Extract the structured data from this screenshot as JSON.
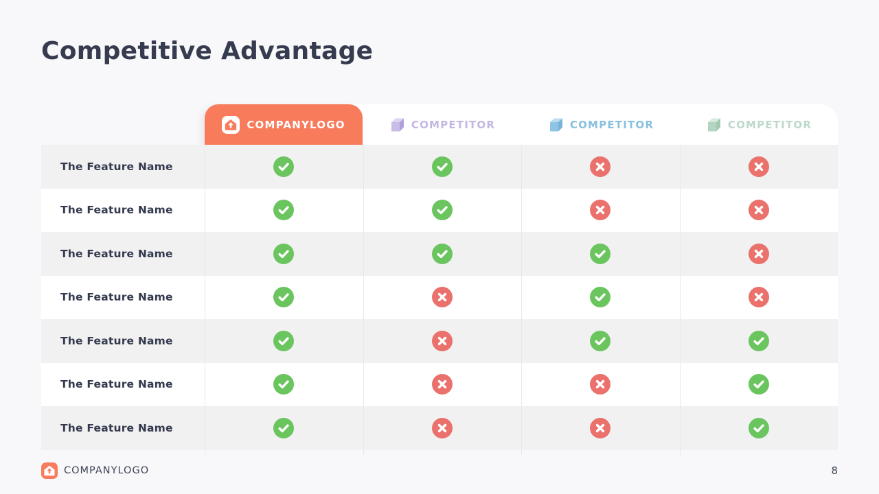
{
  "title": "Competitive Advantage",
  "page_number": "8",
  "colors": {
    "background": "#F8F8FA",
    "accent_orange": "#F87B5C",
    "check_green": "#6BC55F",
    "cross_red": "#EA716C",
    "title_text": "#363B4F",
    "feature_text": "#343A4E",
    "row_stripe": "#F1F1F2",
    "row_white": "#FFFFFF",
    "divider": "#E8E8EA",
    "footer_text": "#3F4556"
  },
  "header": {
    "company": {
      "label": "COMPANYLOGO",
      "icon": "house-logo-icon"
    },
    "competitors": [
      {
        "label": "COMPETITOR",
        "icon": "cube-icon",
        "text_color": "#C4B8E3",
        "cube_top": "#DDD5F1",
        "cube_front": "#C9BCE7",
        "cube_side": "#B0A2D8"
      },
      {
        "label": "COMPETITOR",
        "icon": "cube-icon",
        "text_color": "#88C0E0",
        "cube_top": "#BCDCF1",
        "cube_front": "#8FC4E4",
        "cube_side": "#79B3D8"
      },
      {
        "label": "COMPETITOR",
        "icon": "cube-icon",
        "text_color": "#BDD9CB",
        "cube_top": "#D8EAE0",
        "cube_front": "#B5D5C3",
        "cube_side": "#A3C9B3"
      }
    ]
  },
  "rows": [
    {
      "feature": "The Feature Name",
      "values": [
        true,
        true,
        false,
        false
      ]
    },
    {
      "feature": "The Feature Name",
      "values": [
        true,
        true,
        false,
        false
      ]
    },
    {
      "feature": "The Feature Name",
      "values": [
        true,
        true,
        true,
        false
      ]
    },
    {
      "feature": "The Feature Name",
      "values": [
        true,
        false,
        true,
        false
      ]
    },
    {
      "feature": "The Feature Name",
      "values": [
        true,
        false,
        true,
        true
      ]
    },
    {
      "feature": "The Feature Name",
      "values": [
        true,
        false,
        false,
        true
      ]
    },
    {
      "feature": "The Feature Name",
      "values": [
        true,
        false,
        false,
        true
      ]
    }
  ],
  "footer": {
    "logo_label": "COMPANYLOGO"
  }
}
